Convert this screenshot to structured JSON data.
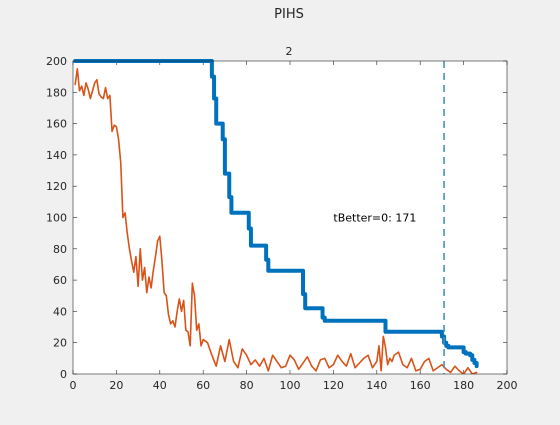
{
  "figure_title": "PIHS",
  "chart_data": {
    "type": "line",
    "title": "2",
    "xlabel": "",
    "ylabel": "",
    "xlim": [
      0,
      200
    ],
    "ylim": [
      0,
      200
    ],
    "xticks": [
      0,
      20,
      40,
      60,
      80,
      100,
      120,
      140,
      160,
      180,
      200
    ],
    "yticks": [
      0,
      20,
      40,
      60,
      80,
      100,
      120,
      140,
      160,
      180,
      200
    ],
    "grid": false,
    "legend": "none",
    "series": [
      {
        "color": "#0072bd",
        "style": "step-thick",
        "x": [
          1,
          63,
          64,
          65,
          66,
          67,
          68,
          69,
          70,
          71,
          72,
          73,
          74,
          80,
          81,
          82,
          88,
          89,
          90,
          105,
          106,
          107,
          114,
          115,
          116,
          143,
          144,
          169,
          170,
          171,
          172,
          173,
          179,
          180,
          181,
          183,
          184,
          185,
          186
        ],
        "y": [
          200,
          200,
          190,
          176,
          160,
          160,
          160,
          150,
          128,
          128,
          113,
          103,
          103,
          103,
          93,
          82,
          82,
          73,
          66,
          66,
          51,
          42,
          42,
          36,
          34,
          34,
          27,
          27,
          24,
          20,
          18,
          17,
          17,
          14,
          13,
          12,
          9,
          7,
          5
        ]
      },
      {
        "color": "#d95319",
        "style": "line",
        "x": [
          1,
          2,
          3,
          4,
          5,
          6,
          7,
          8,
          9,
          10,
          11,
          12,
          13,
          14,
          15,
          16,
          17,
          18,
          19,
          20,
          21,
          22,
          23,
          24,
          25,
          26,
          27,
          28,
          29,
          30,
          31,
          32,
          33,
          34,
          35,
          36,
          37,
          38,
          39,
          40,
          41,
          42,
          43,
          44,
          45,
          46,
          47,
          48,
          49,
          50,
          51,
          52,
          53,
          54,
          55,
          56,
          57,
          58,
          59,
          60,
          62,
          64,
          66,
          68,
          70,
          72,
          74,
          76,
          78,
          80,
          82,
          84,
          86,
          88,
          90,
          92,
          94,
          96,
          98,
          100,
          102,
          104,
          106,
          108,
          110,
          112,
          114,
          116,
          118,
          120,
          122,
          124,
          126,
          128,
          130,
          132,
          134,
          136,
          138,
          140,
          141,
          142,
          143,
          144,
          145,
          146,
          147,
          148,
          150,
          152,
          154,
          156,
          158,
          160,
          162,
          164,
          166,
          168,
          170,
          172,
          174,
          176,
          178,
          180,
          182,
          184,
          186
        ],
        "y": [
          185,
          195,
          181,
          184,
          178,
          186,
          182,
          176,
          181,
          186,
          188,
          179,
          177,
          176,
          183,
          176,
          178,
          155,
          159,
          158,
          150,
          135,
          100,
          103,
          90,
          80,
          72,
          65,
          75,
          56,
          80,
          60,
          68,
          52,
          62,
          55,
          66,
          75,
          85,
          88,
          72,
          52,
          50,
          38,
          32,
          34,
          30,
          40,
          48,
          40,
          47,
          28,
          27,
          18,
          58,
          50,
          28,
          32,
          18,
          22,
          20,
          12,
          5,
          18,
          8,
          22,
          8,
          4,
          16,
          12,
          6,
          9,
          5,
          10,
          2,
          12,
          8,
          4,
          5,
          12,
          9,
          3,
          7,
          11,
          5,
          2,
          9,
          10,
          4,
          6,
          12,
          8,
          5,
          13,
          4,
          7,
          10,
          12,
          4,
          8,
          18,
          2,
          24,
          17,
          6,
          10,
          8,
          12,
          14,
          6,
          4,
          10,
          2,
          3,
          8,
          10,
          2,
          4,
          6,
          3,
          1,
          5,
          2,
          0,
          4,
          0,
          1
        ]
      }
    ],
    "vline": {
      "x": 171,
      "color": "#4a91b8",
      "style": "dashed"
    },
    "annotation": {
      "text": "tBetter=0: 171",
      "x": 120,
      "y": 100
    }
  }
}
